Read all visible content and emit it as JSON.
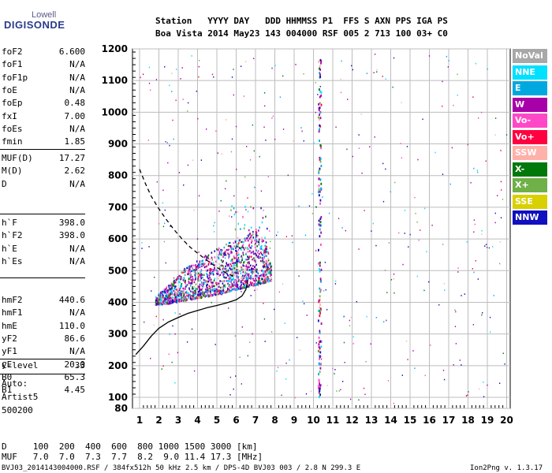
{
  "logo": {
    "top": "Lowell",
    "main": "DIGISONDE"
  },
  "header": {
    "labels": "Station   YYYY DAY   DDD HHMMSS P1  FFS S AXN PPS IGA PS",
    "values": "Boa Vista 2014 May23 143 004000 RSF 005 2 713 100 03+ C0"
  },
  "params": {
    "group1": [
      {
        "name": "foF2",
        "value": "6.600"
      },
      {
        "name": "foF1",
        "value": "N/A"
      },
      {
        "name": "foF1p",
        "value": "N/A"
      },
      {
        "name": "foE",
        "value": "N/A"
      },
      {
        "name": "foEp",
        "value": "0.48"
      },
      {
        "name": "fxI",
        "value": "7.00"
      },
      {
        "name": "foEs",
        "value": "N/A"
      },
      {
        "name": "fmin",
        "value": "1.85"
      }
    ],
    "group2": [
      {
        "name": "MUF(D)",
        "value": "17.27"
      },
      {
        "name": "M(D)",
        "value": "2.62"
      },
      {
        "name": "D",
        "value": "N/A"
      }
    ],
    "group3": [
      {
        "name": "h`F",
        "value": "398.0"
      },
      {
        "name": "h`F2",
        "value": "398.0"
      },
      {
        "name": "h`E",
        "value": "N/A"
      },
      {
        "name": "h`Es",
        "value": "N/A"
      }
    ],
    "group4": [
      {
        "name": "hmF2",
        "value": "440.6"
      },
      {
        "name": "hmF1",
        "value": "N/A"
      },
      {
        "name": "hmE",
        "value": "110.0"
      },
      {
        "name": "yF2",
        "value": "86.6"
      },
      {
        "name": "yF1",
        "value": "N/A"
      },
      {
        "name": "yE",
        "value": "20.0"
      },
      {
        "name": "B0",
        "value": "65.3"
      },
      {
        "name": "B1",
        "value": "4.45"
      }
    ],
    "group5": [
      {
        "name": "C-level",
        "value": "33"
      }
    ]
  },
  "notes": [
    "Auto:",
    "Artist5",
    "500200"
  ],
  "legend": [
    {
      "label": "NoVal",
      "color": "#a8a8a8"
    },
    {
      "label": "NNE",
      "color": "#00e0ff"
    },
    {
      "label": "E",
      "color": "#00a8e0"
    },
    {
      "label": "W",
      "color": "#a800a8"
    },
    {
      "label": "Vo-",
      "color": "#ff48c8"
    },
    {
      "label": "Vo+",
      "color": "#ff0040"
    },
    {
      "label": "SSW",
      "color": "#ffb0a8"
    },
    {
      "label": "X-",
      "color": "#00780a"
    },
    {
      "label": "X+",
      "color": "#70b048"
    },
    {
      "label": "SSE",
      "color": "#d8d000"
    },
    {
      "label": "NNW",
      "color": "#1010c0"
    }
  ],
  "footer": {
    "d_row": "D     100  200  400  600  800 1000 1500 3000 [km]",
    "muf_row": "MUF   7.0  7.0  7.3  7.7  8.2  9.0 11.4 17.3 [MHz]",
    "file_info": "BVJ03_2014143004000.RSF / 384fx512h 50 kHz 2.5 km / DPS-4D BVJ03 003 / 2.8 N 299.3 E",
    "version": "Ion2Png v. 1.3.17"
  },
  "chart_data": {
    "type": "scatter",
    "title": "",
    "xlabel": "",
    "ylabel": "",
    "xlim": [
      0.8,
      20
    ],
    "ylim": [
      80,
      1200
    ],
    "xticks": [
      1,
      2,
      3,
      4,
      5,
      6,
      7,
      8,
      9,
      10,
      11,
      12,
      13,
      14,
      15,
      16,
      17,
      18,
      19,
      20
    ],
    "yticks": [
      80,
      100,
      200,
      300,
      400,
      500,
      600,
      700,
      800,
      900,
      1000,
      1100,
      1200
    ],
    "grid": true,
    "legend_position": "right",
    "profile_solid": {
      "x": [
        0.8,
        1.2,
        1.6,
        2.0,
        2.5,
        3.0,
        3.5,
        4.0,
        4.5,
        5.0,
        5.5,
        6.0,
        6.3,
        6.5,
        6.6
      ],
      "y": [
        235,
        262,
        293,
        318,
        338,
        352,
        365,
        374,
        383,
        390,
        398,
        408,
        420,
        440,
        470
      ]
    },
    "profile_dashed": {
      "x": [
        1.0,
        1.3,
        1.6,
        2.0,
        2.4,
        2.8,
        3.2,
        3.6,
        4.0,
        4.5,
        5.0,
        5.5,
        6.0
      ],
      "y": [
        820,
        775,
        735,
        695,
        660,
        628,
        600,
        575,
        555,
        532,
        510,
        492,
        478
      ]
    },
    "echo_trace": {
      "x_start": 1.8,
      "x_end": 7.8,
      "lower_edge": [
        [
          1.8,
          395
        ],
        [
          2.5,
          398
        ],
        [
          3.5,
          410
        ],
        [
          4.5,
          420
        ],
        [
          5.5,
          435
        ],
        [
          6.5,
          450
        ],
        [
          7.2,
          460
        ],
        [
          7.8,
          470
        ]
      ],
      "upper_edge": [
        [
          1.8,
          420
        ],
        [
          2.5,
          460
        ],
        [
          3.5,
          520
        ],
        [
          4.5,
          555
        ],
        [
          5.5,
          590
        ],
        [
          6.5,
          610
        ],
        [
          7.0,
          640
        ],
        [
          7.5,
          600
        ],
        [
          7.8,
          520
        ]
      ]
    },
    "vertical_band": {
      "x": 10.3,
      "y_range": [
        100,
        1180
      ]
    }
  }
}
